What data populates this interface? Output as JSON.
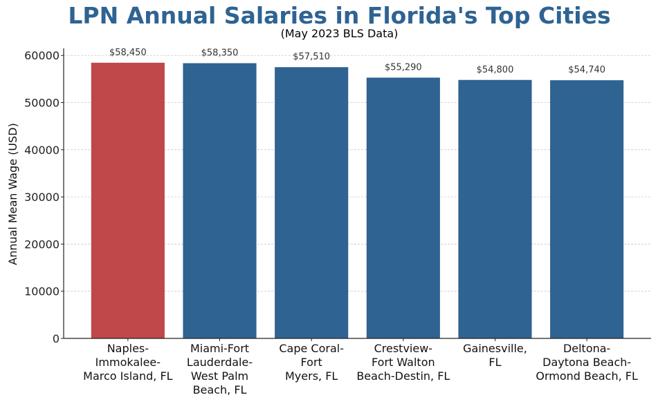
{
  "chart_data": {
    "type": "bar",
    "title": "LPN Annual Salaries in Florida's Top Cities",
    "subtitle": "(May 2023 BLS Data)",
    "xlabel": "",
    "ylabel": "Annual Mean Wage (USD)",
    "ylim": [
      0,
      61500
    ],
    "yticks": [
      0,
      10000,
      20000,
      30000,
      40000,
      50000,
      60000
    ],
    "grid": "y-dashed",
    "categories": [
      [
        "Naples-",
        "Immokalee-",
        "Marco Island, FL"
      ],
      [
        "Miami-Fort",
        "Lauderdale-",
        "West Palm",
        "Beach, FL"
      ],
      [
        "Cape Coral-",
        "Fort",
        "Myers, FL"
      ],
      [
        "Crestview-",
        "Fort Walton",
        "Beach-Destin, FL"
      ],
      [
        "Gainesville,",
        "FL"
      ],
      [
        "Deltona-",
        "Daytona Beach-",
        "Ormond Beach, FL"
      ]
    ],
    "values": [
      58450,
      58350,
      57510,
      55290,
      54800,
      54740
    ],
    "value_labels": [
      "$58,450",
      "$58,350",
      "$57,510",
      "$55,290",
      "$54,800",
      "$54,740"
    ],
    "colors": [
      "#c0474a",
      "#2e6392",
      "#2e6392",
      "#2e6392",
      "#2e6392",
      "#2e6392"
    ]
  }
}
